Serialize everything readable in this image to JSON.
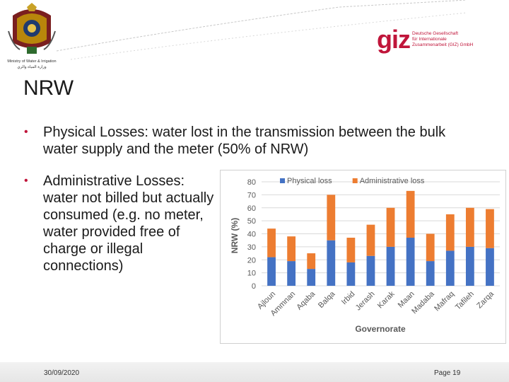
{
  "header": {
    "ministry_en": "Ministry of Water & Irrigation",
    "ministry_ar": "وزارة المياه والري",
    "giz_mark": "giz",
    "giz_line1": "Deutsche Gesellschaft",
    "giz_line2": "für Internationale",
    "giz_line3": "Zusammenarbeit (GIZ) GmbH",
    "brand_color": "#c0153a"
  },
  "slide": {
    "title": "NRW",
    "bullet1": "Physical Losses: water lost in the transmission between the bulk water supply and the meter (50% of NRW)",
    "bullet2": "Administrative Losses: water not billed but actually consumed (e.g. no meter, water provided free of charge or illegal connections)"
  },
  "footer": {
    "date": "30/09/2020",
    "page": "Page 19"
  },
  "chart_data": {
    "type": "bar",
    "stacked": true,
    "categories": [
      "Ajloun",
      "Ammnan",
      "Aqaba",
      "Balqa",
      "Irbid",
      "Jerash",
      "Karak",
      "Maan",
      "Madaba",
      "Mafraq",
      "Tafileh",
      "Zarqa"
    ],
    "series": [
      {
        "name": "Physical loss",
        "color": "#4472c4",
        "values": [
          22,
          19,
          13,
          35,
          18,
          23,
          30,
          37,
          19,
          27,
          30,
          29
        ]
      },
      {
        "name": "Administrative loss",
        "color": "#ed7d31",
        "values": [
          22,
          19,
          12,
          35,
          19,
          24,
          30,
          36,
          21,
          28,
          30,
          30
        ]
      }
    ],
    "xlabel": "Governorate",
    "ylabel": "NRW (%)",
    "ylim": [
      0,
      80
    ],
    "yticks": [
      0,
      10,
      20,
      30,
      40,
      50,
      60,
      70,
      80
    ],
    "grid": true,
    "legend": "top"
  }
}
